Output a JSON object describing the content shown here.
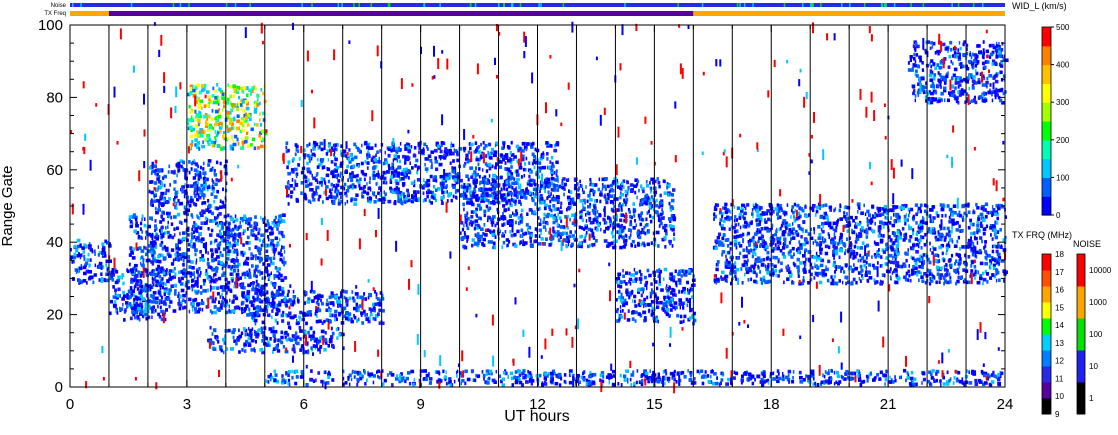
{
  "chart_data": {
    "type": "heatmap",
    "title": "",
    "xlabel": "UT hours",
    "ylabel": "Range Gate",
    "xlim": [
      0,
      24
    ],
    "ylim": [
      0,
      100
    ],
    "x_ticks": [
      "0",
      "3",
      "6",
      "9",
      "12",
      "15",
      "18",
      "21",
      "24"
    ],
    "y_ticks": [
      "0",
      "20",
      "40",
      "60",
      "80",
      "100"
    ],
    "top_strips": {
      "noise_label": "Noise",
      "txfreq_label": "TX Freq",
      "noise_color": "#2a2ae6",
      "txfreq_segments": [
        {
          "from": 0,
          "to": 1,
          "color": "#ffa500"
        },
        {
          "from": 1,
          "to": 16,
          "color": "#55009e"
        },
        {
          "from": 16,
          "to": 24,
          "color": "#ffa500"
        }
      ]
    },
    "scan_boundaries_ut": [
      1,
      2,
      3,
      4,
      5,
      6,
      7,
      8,
      9,
      10,
      11,
      12,
      13,
      14,
      15,
      16,
      17,
      18,
      19,
      20,
      21,
      22,
      23
    ],
    "scatter_regions": [
      {
        "ut": [
          0.0,
          1.0
        ],
        "gates": [
          28,
          40
        ],
        "dominant": "blue"
      },
      {
        "ut": [
          1.0,
          2.5
        ],
        "gates": [
          18,
          32
        ],
        "dominant": "blue"
      },
      {
        "ut": [
          1.5,
          5.5
        ],
        "gates": [
          20,
          47
        ],
        "dominant": "blue"
      },
      {
        "ut": [
          2.0,
          4.0
        ],
        "gates": [
          47,
          62
        ],
        "dominant": "blue"
      },
      {
        "ut": [
          3.0,
          5.0
        ],
        "gates": [
          65,
          83
        ],
        "dominant": "cyan-green-orange"
      },
      {
        "ut": [
          5.5,
          12.5
        ],
        "gates": [
          50,
          67
        ],
        "dominant": "blue"
      },
      {
        "ut": [
          10.0,
          15.5
        ],
        "gates": [
          38,
          57
        ],
        "dominant": "blue"
      },
      {
        "ut": [
          14.0,
          16.0
        ],
        "gates": [
          17,
          32
        ],
        "dominant": "blue"
      },
      {
        "ut": [
          16.5,
          24.0
        ],
        "gates": [
          28,
          50
        ],
        "dominant": "blue"
      },
      {
        "ut": [
          3.5,
          7.0
        ],
        "gates": [
          9,
          16
        ],
        "dominant": "blue"
      },
      {
        "ut": [
          4.5,
          8.0
        ],
        "gates": [
          17,
          26
        ],
        "dominant": "blue"
      },
      {
        "ut": [
          5.0,
          24.0
        ],
        "gates": [
          0,
          4
        ],
        "dominant": "blue"
      },
      {
        "ut": [
          21.5,
          24.0
        ],
        "gates": [
          78,
          95
        ],
        "dominant": "blue"
      }
    ],
    "colorbar_width": {
      "title": "WID_L (km/s)",
      "ticks": [
        "500",
        "400",
        "300",
        "200",
        "100",
        "0"
      ],
      "range": [
        0,
        500
      ],
      "colors": [
        "#0000ff",
        "#0060ff",
        "#00c8ff",
        "#00ffb0",
        "#00ff00",
        "#a0ff00",
        "#ffff00",
        "#ffc000",
        "#ff8000",
        "#ff0000"
      ]
    },
    "colorbar_txfreq": {
      "title": "TX FRQ (MHz)",
      "ticks": [
        "18",
        "17",
        "16",
        "15",
        "14",
        "13",
        "12",
        "11",
        "10",
        "9"
      ],
      "colors": [
        "#000000",
        "#55009e",
        "#2a2ae6",
        "#0080ff",
        "#00d0ff",
        "#00ff00",
        "#ffff00",
        "#ffa500",
        "#ff5000",
        "#ff0000"
      ]
    },
    "colorbar_noise": {
      "title": "NOISE",
      "ticks": [
        "10000",
        "1000",
        "100",
        "10",
        "1"
      ],
      "colors": [
        "#000000",
        "#2020f0",
        "#00e000",
        "#ffa500",
        "#ff0000"
      ]
    }
  }
}
